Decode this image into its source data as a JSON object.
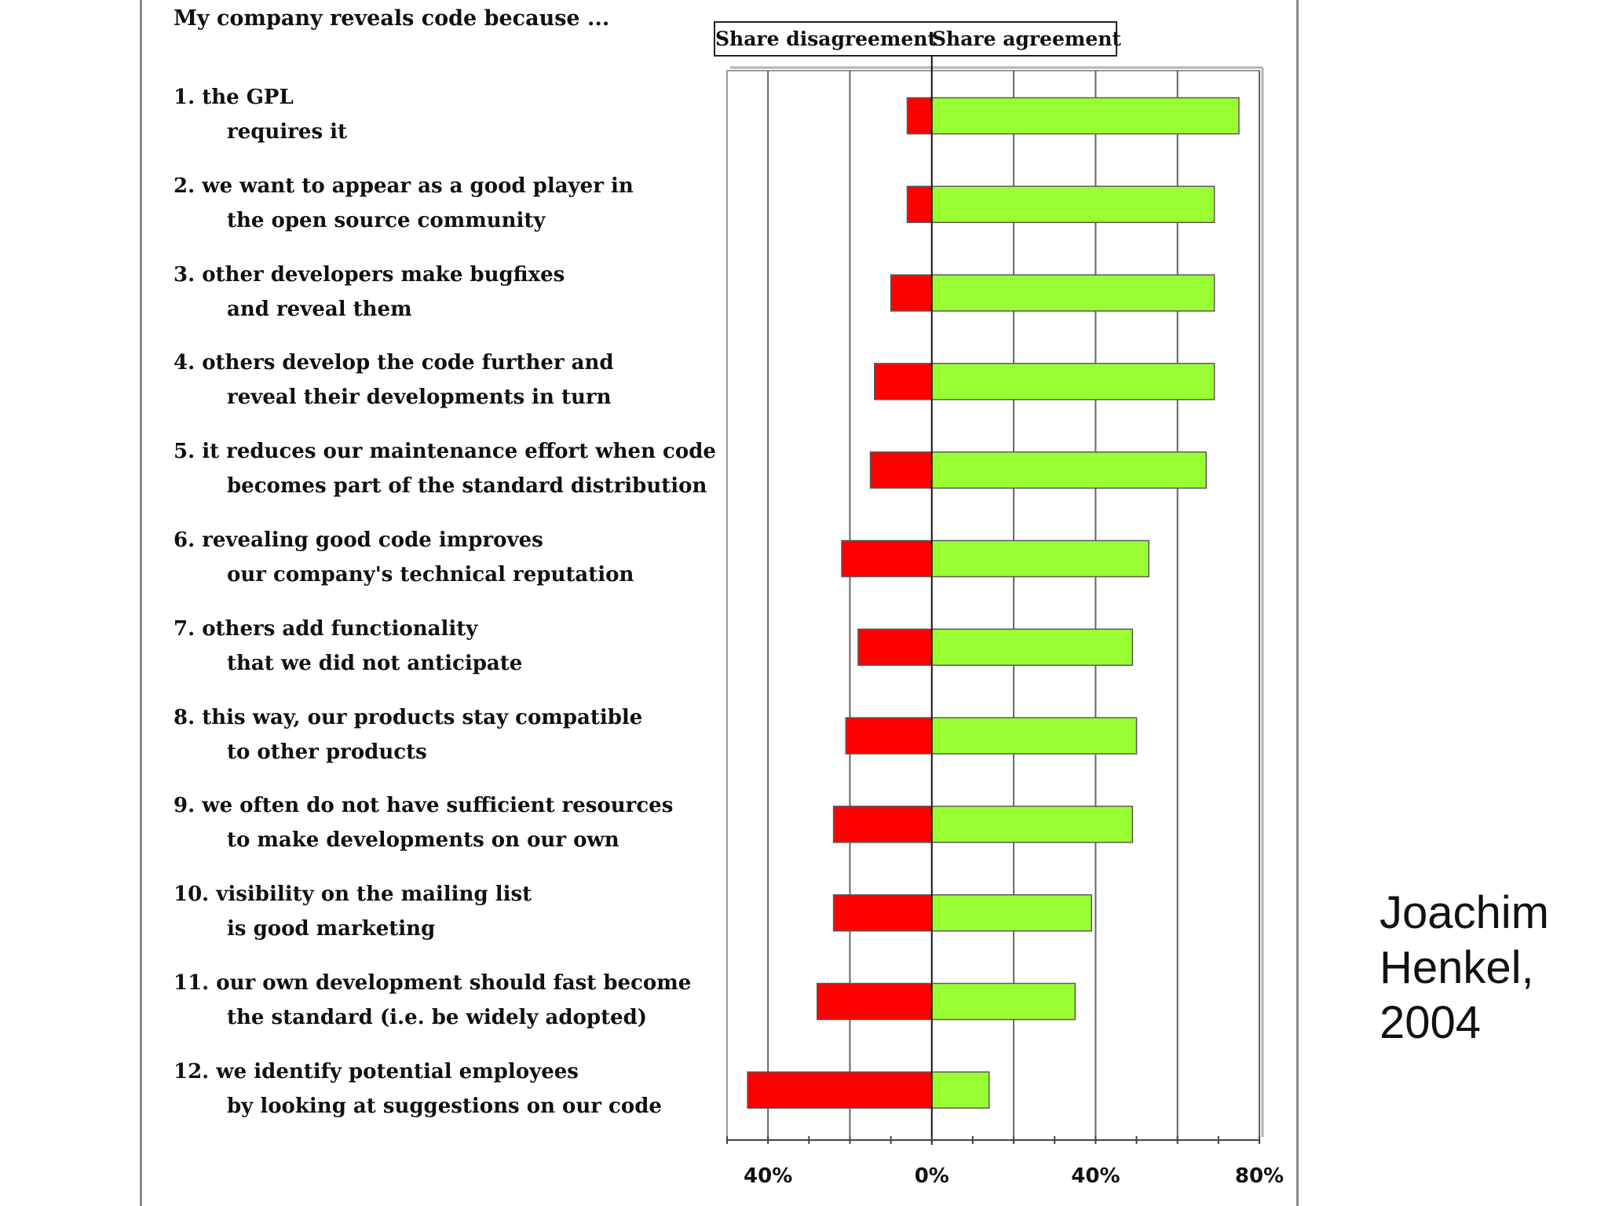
{
  "credit": {
    "line1": "Joachim",
    "line2": "Henkel,",
    "line3": "2004"
  },
  "chart_data": {
    "type": "bar",
    "orientation": "horizontal",
    "stacked": "diverging",
    "title": "My company reveals code because ...",
    "legend": [
      {
        "name": "Share disagreement",
        "color": "#ff0000"
      },
      {
        "name": "Share agreement",
        "color": "#99ff33"
      }
    ],
    "legend_position": "top",
    "x_ticks": [
      "40%",
      "0%",
      "40%",
      "80%"
    ],
    "x_tick_values": [
      -40,
      0,
      40,
      80
    ],
    "xlim": [
      -50,
      80
    ],
    "grid": true,
    "categories": [
      {
        "line1": "1. the GPL",
        "line2": "requires it"
      },
      {
        "line1": "2. we want to appear as a good player in",
        "line2": "the open source community"
      },
      {
        "line1": "3. other developers make bugfixes",
        "line2": "and reveal them"
      },
      {
        "line1": "4. others develop the code further and",
        "line2": "reveal their developments in turn"
      },
      {
        "line1": "5. it reduces our maintenance effort when code",
        "line2": "becomes part of the standard distribution"
      },
      {
        "line1": "6. revealing good code improves",
        "line2": "our company's technical reputation"
      },
      {
        "line1": "7. others add functionality",
        "line2": "that we did not anticipate"
      },
      {
        "line1": "8. this way, our products stay compatible",
        "line2": "to other products"
      },
      {
        "line1": "9. we often do not have sufficient resources",
        "line2": "to make developments on our own"
      },
      {
        "line1": "10. visibility on the mailing list",
        "line2": "is good marketing"
      },
      {
        "line1": "11. our own development should fast become",
        "line2": "the standard (i.e. be widely adopted)"
      },
      {
        "line1": "12. we identify potential employees",
        "line2": "by looking at suggestions on our code"
      }
    ],
    "series": [
      {
        "name": "Share disagreement",
        "color": "#ff0000",
        "values": [
          6,
          6,
          10,
          14,
          15,
          22,
          18,
          21,
          24,
          24,
          28,
          45
        ]
      },
      {
        "name": "Share agreement",
        "color": "#99ff33",
        "values": [
          75,
          69,
          69,
          69,
          67,
          53,
          49,
          50,
          49,
          39,
          35,
          14
        ]
      }
    ]
  }
}
